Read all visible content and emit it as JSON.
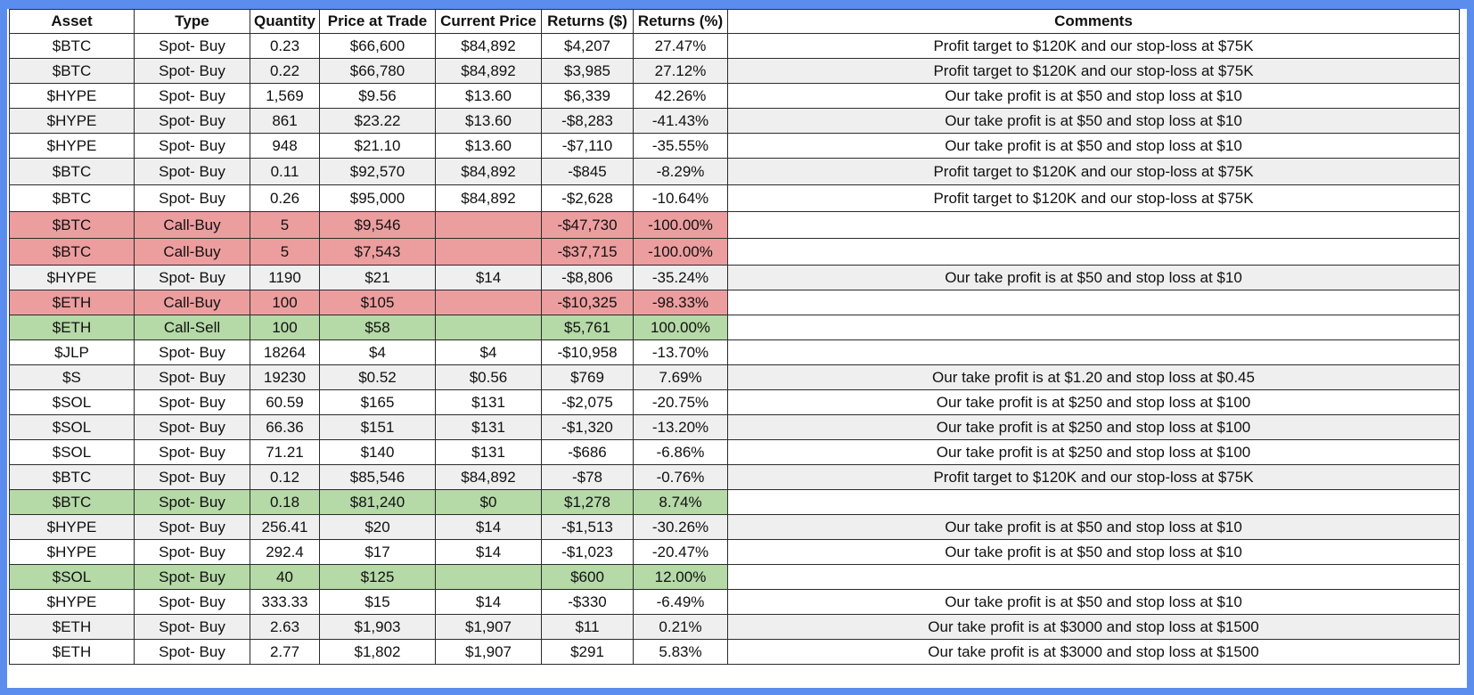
{
  "table": {
    "headers": [
      "Asset",
      "Type",
      "Quantity",
      "Price at Trade",
      "Current Price",
      "Returns ($)",
      "Returns (%)",
      "Comments"
    ],
    "rows": [
      {
        "asset": "$BTC",
        "type": "Spot- Buy",
        "quantity": "0.23",
        "price_at_trade": "$66,600",
        "current_price": "$84,892",
        "returns_usd": "$4,207",
        "returns_pct": "27.47%",
        "comment": "Profit target to $120K and our stop-loss at $75K",
        "highlight": "none"
      },
      {
        "asset": "$BTC",
        "type": "Spot- Buy",
        "quantity": "0.22",
        "price_at_trade": "$66,780",
        "current_price": "$84,892",
        "returns_usd": "$3,985",
        "returns_pct": "27.12%",
        "comment": "Profit target to $120K and our stop-loss at $75K",
        "highlight": "none"
      },
      {
        "asset": "$HYPE",
        "type": "Spot- Buy",
        "quantity": "1,569",
        "price_at_trade": "$9.56",
        "current_price": "$13.60",
        "returns_usd": "$6,339",
        "returns_pct": "42.26%",
        "comment": "Our take profit is at $50 and stop loss at $10",
        "highlight": "none"
      },
      {
        "asset": "$HYPE",
        "type": "Spot- Buy",
        "quantity": "861",
        "price_at_trade": "$23.22",
        "current_price": "$13.60",
        "returns_usd": "-$8,283",
        "returns_pct": "-41.43%",
        "comment": "Our take profit is at $50 and stop loss at $10",
        "highlight": "none"
      },
      {
        "asset": "$HYPE",
        "type": "Spot- Buy",
        "quantity": "948",
        "price_at_trade": "$21.10",
        "current_price": "$13.60",
        "returns_usd": "-$7,110",
        "returns_pct": "-35.55%",
        "comment": "Our take profit is at $50 and stop loss at $10",
        "highlight": "none"
      },
      {
        "asset": "$BTC",
        "type": "Spot- Buy",
        "quantity": "0.11",
        "price_at_trade": "$92,570",
        "current_price": "$84,892",
        "returns_usd": "-$845",
        "returns_pct": "-8.29%",
        "comment": "Profit target to $120K and our stop-loss at $75K",
        "highlight": "none"
      },
      {
        "asset": "$BTC",
        "type": "Spot- Buy",
        "quantity": "0.26",
        "price_at_trade": "$95,000",
        "current_price": "$84,892",
        "returns_usd": "-$2,628",
        "returns_pct": "-10.64%",
        "comment": "Profit target to $120K and our stop-loss at $75K",
        "highlight": "none"
      },
      {
        "asset": "$BTC",
        "type": "Call-Buy",
        "quantity": "5",
        "price_at_trade": "$9,546",
        "current_price": "",
        "returns_usd": "-$47,730",
        "returns_pct": "-100.00%",
        "comment": "",
        "highlight": "red"
      },
      {
        "asset": "$BTC",
        "type": "Call-Buy",
        "quantity": "5",
        "price_at_trade": "$7,543",
        "current_price": "",
        "returns_usd": "-$37,715",
        "returns_pct": "-100.00%",
        "comment": "",
        "highlight": "red"
      },
      {
        "asset": "$HYPE",
        "type": "Spot- Buy",
        "quantity": "1190",
        "price_at_trade": "$21",
        "current_price": "$14",
        "returns_usd": "-$8,806",
        "returns_pct": "-35.24%",
        "comment": "Our take profit is at $50 and stop loss at $10",
        "highlight": "none"
      },
      {
        "asset": "$ETH",
        "type": "Call-Buy",
        "quantity": "100",
        "price_at_trade": "$105",
        "current_price": "",
        "returns_usd": "-$10,325",
        "returns_pct": "-98.33%",
        "comment": "",
        "highlight": "red"
      },
      {
        "asset": "$ETH",
        "type": "Call-Sell",
        "quantity": "100",
        "price_at_trade": "$58",
        "current_price": "",
        "returns_usd": "$5,761",
        "returns_pct": "100.00%",
        "comment": "",
        "highlight": "green"
      },
      {
        "asset": "$JLP",
        "type": "Spot- Buy",
        "quantity": "18264",
        "price_at_trade": "$4",
        "current_price": "$4",
        "returns_usd": "-$10,958",
        "returns_pct": "-13.70%",
        "comment": "",
        "highlight": "none"
      },
      {
        "asset": "$S",
        "type": "Spot- Buy",
        "quantity": "19230",
        "price_at_trade": "$0.52",
        "current_price": "$0.56",
        "returns_usd": "$769",
        "returns_pct": "7.69%",
        "comment": "Our take profit is at $1.20 and stop loss at $0.45",
        "highlight": "none"
      },
      {
        "asset": "$SOL",
        "type": "Spot- Buy",
        "quantity": "60.59",
        "price_at_trade": "$165",
        "current_price": "$131",
        "returns_usd": "-$2,075",
        "returns_pct": "-20.75%",
        "comment": "Our take profit is at $250 and stop loss at $100",
        "highlight": "none"
      },
      {
        "asset": "$SOL",
        "type": "Spot- Buy",
        "quantity": "66.36",
        "price_at_trade": "$151",
        "current_price": "$131",
        "returns_usd": "-$1,320",
        "returns_pct": "-13.20%",
        "comment": "Our take profit is at $250 and stop loss at $100",
        "highlight": "none"
      },
      {
        "asset": "$SOL",
        "type": "Spot- Buy",
        "quantity": "71.21",
        "price_at_trade": "$140",
        "current_price": "$131",
        "returns_usd": "-$686",
        "returns_pct": "-6.86%",
        "comment": "Our take profit is at $250 and stop loss at $100",
        "highlight": "none"
      },
      {
        "asset": "$BTC",
        "type": "Spot- Buy",
        "quantity": "0.12",
        "price_at_trade": "$85,546",
        "current_price": "$84,892",
        "returns_usd": "-$78",
        "returns_pct": "-0.76%",
        "comment": "Profit target to $120K and our stop-loss at $75K",
        "highlight": "none"
      },
      {
        "asset": "$BTC",
        "type": "Spot- Buy",
        "quantity": "0.18",
        "price_at_trade": "$81,240",
        "current_price": "$0",
        "returns_usd": "$1,278",
        "returns_pct": "8.74%",
        "comment": "",
        "highlight": "green"
      },
      {
        "asset": "$HYPE",
        "type": "Spot- Buy",
        "quantity": "256.41",
        "price_at_trade": "$20",
        "current_price": "$14",
        "returns_usd": "-$1,513",
        "returns_pct": "-30.26%",
        "comment": "Our take profit is at $50 and stop loss at $10",
        "highlight": "none"
      },
      {
        "asset": "$HYPE",
        "type": "Spot- Buy",
        "quantity": "292.4",
        "price_at_trade": "$17",
        "current_price": "$14",
        "returns_usd": "-$1,023",
        "returns_pct": "-20.47%",
        "comment": "Our take profit is at $50 and stop loss at $10",
        "highlight": "none"
      },
      {
        "asset": "$SOL",
        "type": "Spot- Buy",
        "quantity": "40",
        "price_at_trade": "$125",
        "current_price": "",
        "returns_usd": "$600",
        "returns_pct": "12.00%",
        "comment": "",
        "highlight": "green"
      },
      {
        "asset": "$HYPE",
        "type": "Spot- Buy",
        "quantity": "333.33",
        "price_at_trade": "$15",
        "current_price": "$14",
        "returns_usd": "-$330",
        "returns_pct": "-6.49%",
        "comment": "Our take profit is at $50 and stop loss at $10",
        "highlight": "none"
      },
      {
        "asset": "$ETH",
        "type": "Spot- Buy",
        "quantity": "2.63",
        "price_at_trade": "$1,903",
        "current_price": "$1,907",
        "returns_usd": "$11",
        "returns_pct": "0.21%",
        "comment": "Our take profit is at $3000 and stop loss at $1500",
        "highlight": "none"
      },
      {
        "asset": "$ETH",
        "type": "Spot- Buy",
        "quantity": "2.77",
        "price_at_trade": "$1,802",
        "current_price": "$1,907",
        "returns_usd": "$291",
        "returns_pct": "5.83%",
        "comment": "Our take profit is at $3000 and stop loss at $1500",
        "highlight": "none"
      }
    ]
  },
  "colors": {
    "frame_border": "#5b8def",
    "row_alt_grey": "#efefef",
    "highlight_red": "#ec9e9f",
    "highlight_green": "#b5d9a7"
  }
}
